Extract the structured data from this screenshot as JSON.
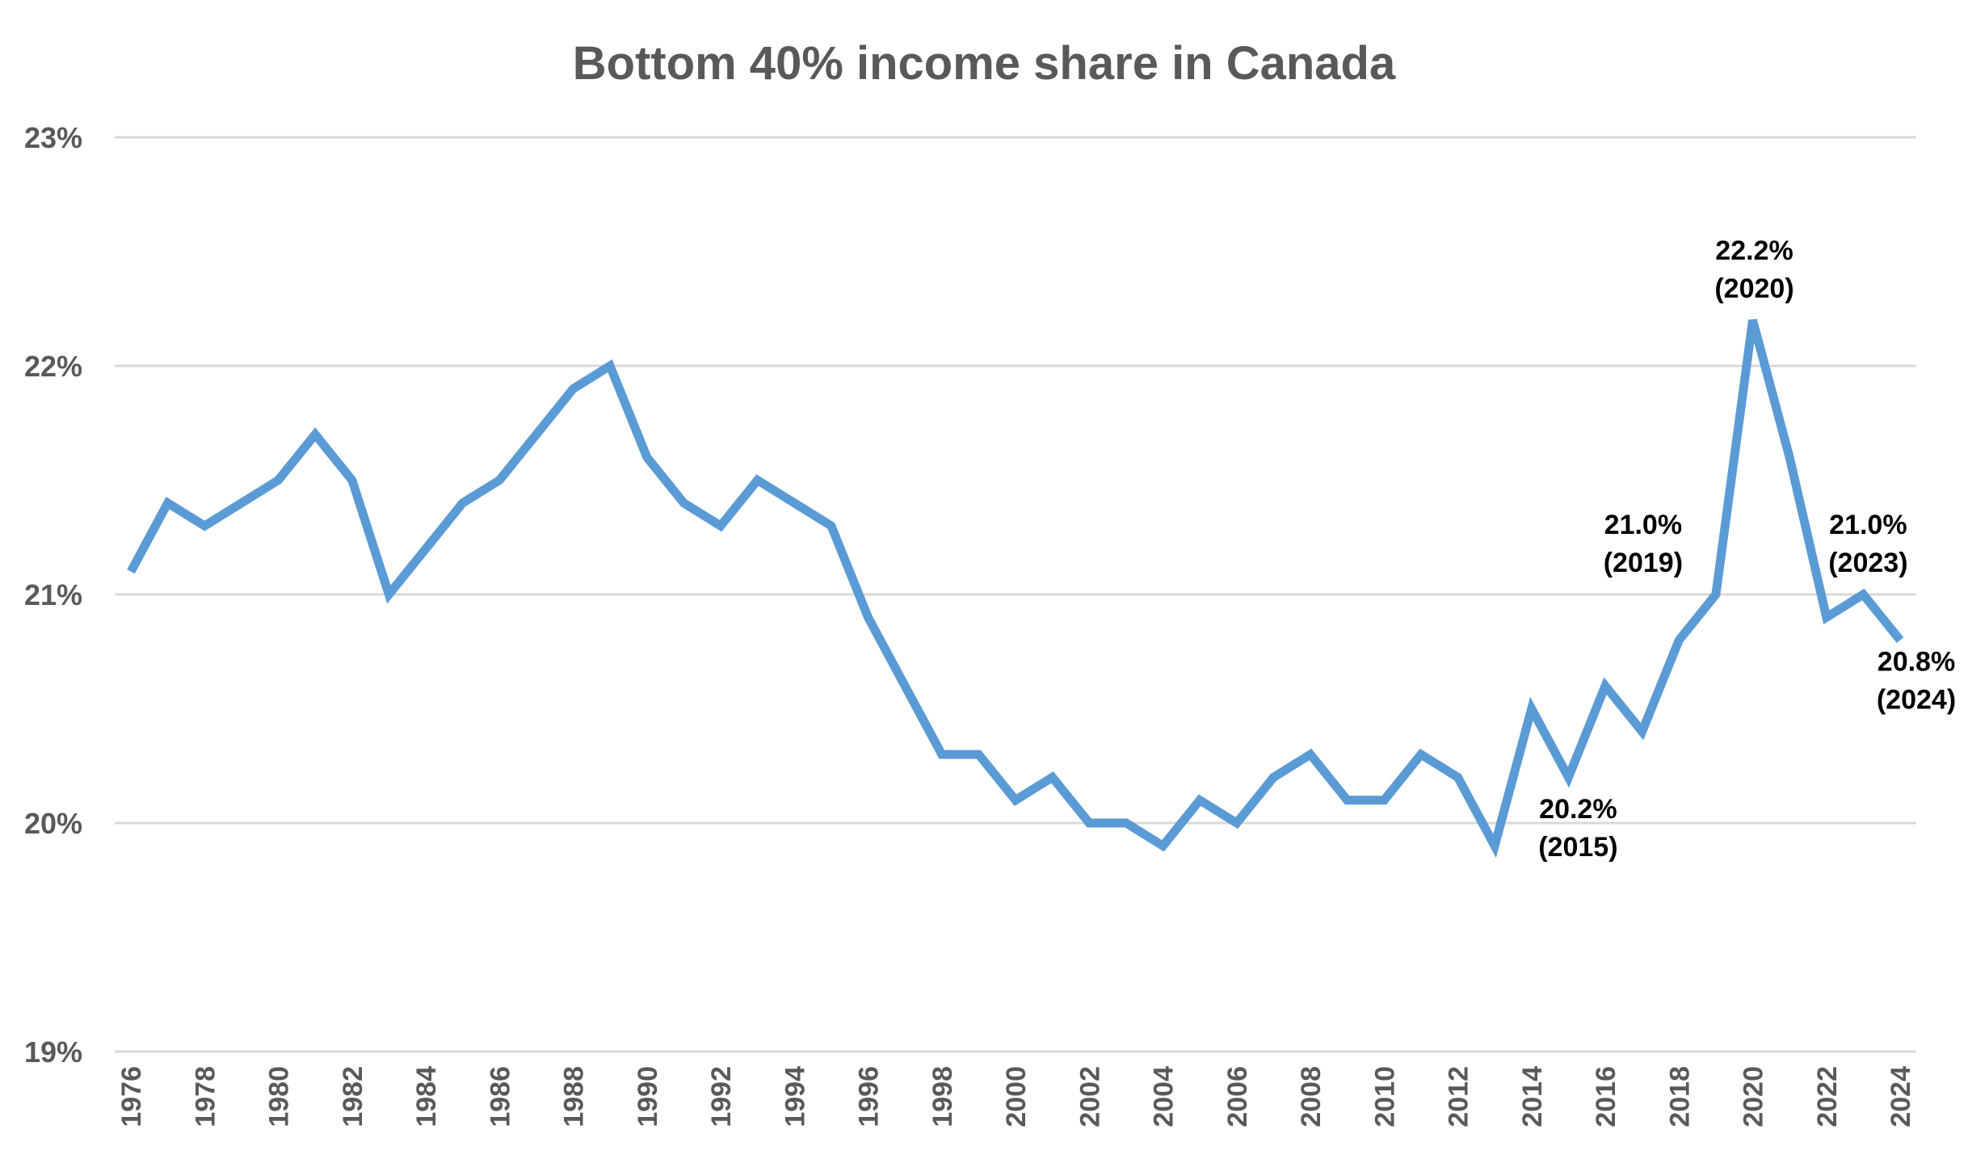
{
  "chart_data": {
    "type": "line",
    "title": "Bottom 40% income share in Canada",
    "xlabel": "",
    "ylabel": "",
    "ylim": [
      19,
      23
    ],
    "yticks": [
      "19%",
      "20%",
      "21%",
      "22%",
      "23%"
    ],
    "grid": true,
    "legend": "none",
    "line_color": "#5b9bd5",
    "x": [
      1976,
      1977,
      1978,
      1979,
      1980,
      1981,
      1982,
      1983,
      1984,
      1985,
      1986,
      1987,
      1988,
      1989,
      1990,
      1991,
      1992,
      1993,
      1994,
      1995,
      1996,
      1997,
      1998,
      1999,
      2000,
      2001,
      2002,
      2003,
      2004,
      2005,
      2006,
      2007,
      2008,
      2009,
      2010,
      2011,
      2012,
      2013,
      2014,
      2015,
      2016,
      2017,
      2018,
      2019,
      2020,
      2021,
      2022,
      2023,
      2024
    ],
    "xticks": [
      "1976",
      "1978",
      "1980",
      "1982",
      "1984",
      "1986",
      "1988",
      "1990",
      "1992",
      "1994",
      "1996",
      "1998",
      "2000",
      "2002",
      "2004",
      "2006",
      "2008",
      "2010",
      "2012",
      "2014",
      "2016",
      "2018",
      "2020",
      "2022",
      "2024"
    ],
    "series": [
      {
        "values": [
          21.1,
          21.4,
          21.3,
          21.4,
          21.5,
          21.7,
          21.5,
          21.0,
          21.2,
          21.4,
          21.5,
          21.7,
          21.9,
          22.0,
          21.6,
          21.4,
          21.3,
          21.5,
          21.4,
          21.3,
          20.9,
          20.6,
          20.3,
          20.3,
          20.1,
          20.2,
          20.0,
          20.0,
          19.9,
          20.1,
          20.0,
          20.2,
          20.3,
          20.1,
          20.1,
          20.3,
          20.2,
          19.9,
          20.5,
          20.2,
          20.6,
          20.4,
          20.8,
          21.0,
          22.2,
          21.6,
          20.9,
          21.0,
          20.8
        ]
      }
    ],
    "annotations": [
      {
        "year": 2015,
        "line1": "20.2%",
        "line2": "(2015)"
      },
      {
        "year": 2019,
        "line1": "21.0%",
        "line2": "(2019)"
      },
      {
        "year": 2020,
        "line1": "22.2%",
        "line2": "(2020)"
      },
      {
        "year": 2023,
        "line1": "21.0%",
        "line2": "(2023)"
      },
      {
        "year": 2024,
        "line1": "20.8%",
        "line2": "(2024)"
      }
    ]
  }
}
